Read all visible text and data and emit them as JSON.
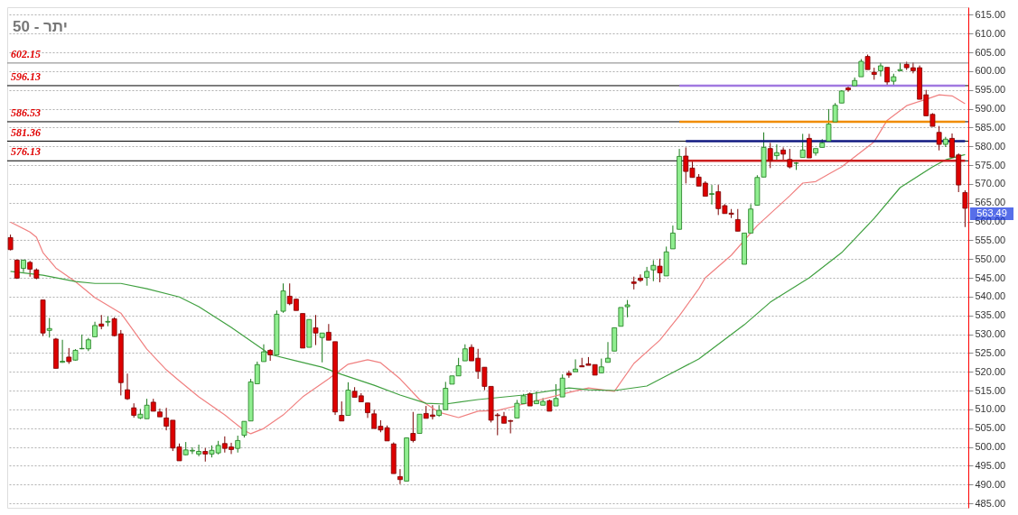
{
  "chart_data": {
    "type": "candlestick",
    "title": "50 - יתר",
    "categories": [
      null,
      null,
      null,
      null,
      null,
      null,
      null,
      null,
      null,
      null,
      null,
      null,
      null,
      null,
      null,
      null,
      null,
      null,
      null,
      null,
      null,
      null,
      null,
      null,
      null,
      null,
      null,
      null,
      null,
      null,
      null,
      null,
      null,
      null,
      null,
      null,
      null,
      null,
      null,
      null,
      null,
      null,
      null,
      null,
      null,
      null,
      null,
      null,
      null,
      null,
      null,
      null,
      null,
      null,
      null,
      null,
      null,
      null,
      null,
      null,
      null,
      null,
      null,
      null,
      null,
      null,
      null,
      null,
      null,
      null,
      null,
      null,
      null,
      null,
      null,
      null,
      null,
      null,
      null,
      null,
      null,
      null,
      null,
      null,
      null,
      null,
      null,
      null,
      null,
      null,
      null,
      null,
      null,
      null,
      null,
      null,
      null,
      null,
      null,
      null,
      null,
      null,
      null,
      null,
      null,
      null,
      null,
      null,
      null,
      null,
      null,
      null,
      null,
      null,
      null,
      null,
      null,
      null,
      null,
      null,
      null,
      null,
      null,
      null,
      null,
      null,
      null,
      null,
      null,
      null,
      null,
      null,
      null,
      null,
      null,
      null,
      null,
      null,
      null,
      null,
      null,
      null,
      null,
      null,
      null,
      null,
      null,
      null
    ],
    "ohlc": [
      [
        555.7,
        556.5,
        552.3,
        552.5
      ],
      [
        549.7,
        549.9,
        544.7,
        544.9
      ],
      [
        547.5,
        549.8,
        546.5,
        549.7
      ],
      [
        549.1,
        549.5,
        545.3,
        547.3
      ],
      [
        547.1,
        547.5,
        544.6,
        544.9
      ],
      [
        539.1,
        539.1,
        529.5,
        530.3
      ],
      [
        531.0,
        534.3,
        529.1,
        531.5
      ],
      [
        528.7,
        529.0,
        520.9,
        520.9
      ],
      [
        522.5,
        528.5,
        522.4,
        522.8
      ],
      [
        523.9,
        526.3,
        522.1,
        522.7
      ],
      [
        523.1,
        526.0,
        523.0,
        525.7
      ],
      [
        526.1,
        529.9,
        526.0,
        526.2
      ],
      [
        526.1,
        529.0,
        525.5,
        528.5
      ],
      [
        529.3,
        533.3,
        529.3,
        532.3
      ],
      [
        532.7,
        535.1,
        531.3,
        532.1
      ],
      [
        533.2,
        534.7,
        532.1,
        533.4
      ],
      [
        534.1,
        534.5,
        529.4,
        529.6
      ],
      [
        530.1,
        531.1,
        513.7,
        517.1
      ],
      [
        515.2,
        519.5,
        512.5,
        512.8
      ],
      [
        510.4,
        511.6,
        507.8,
        508.4
      ],
      [
        507.7,
        510.1,
        507.4,
        508.7
      ],
      [
        507.5,
        512.8,
        507.5,
        511.1
      ],
      [
        511.9,
        512.8,
        509.5,
        509.5
      ],
      [
        509.3,
        510.2,
        508.0,
        508.0
      ],
      [
        507.7,
        510.4,
        504.4,
        505.5
      ],
      [
        507.1,
        507.1,
        498.9,
        499.7
      ],
      [
        500.0,
        500.9,
        496.3,
        496.3
      ],
      [
        497.9,
        501.3,
        497.8,
        499.2
      ],
      [
        498.9,
        499.9,
        498.1,
        499.1
      ],
      [
        498.1,
        500.6,
        497.5,
        498.8
      ],
      [
        498.8,
        499.7,
        496.1,
        498.1
      ],
      [
        498.1,
        500.4,
        497.2,
        499.1
      ],
      [
        498.4,
        501.6,
        498.0,
        500.4
      ],
      [
        500.9,
        502.8,
        498.5,
        499.6
      ],
      [
        500.0,
        501.1,
        498.1,
        499.3
      ],
      [
        499.6,
        503.0,
        498.5,
        501.7
      ],
      [
        503.1,
        506.8,
        502.5,
        506.8
      ],
      [
        506.9,
        518.1,
        506.9,
        517.3
      ],
      [
        516.8,
        522.7,
        516.8,
        521.9
      ],
      [
        522.7,
        527.3,
        522.7,
        525.3
      ],
      [
        525.7,
        526.0,
        522.9,
        524.5
      ],
      [
        524.5,
        536.3,
        524.5,
        535.3
      ],
      [
        536.1,
        543.5,
        535.7,
        541.5
      ],
      [
        540.1,
        543.5,
        537.7,
        538.1
      ],
      [
        539.3,
        539.5,
        536.3,
        536.3
      ],
      [
        535.5,
        535.5,
        526.3,
        526.3
      ],
      [
        526.5,
        533.9,
        526.5,
        533.9
      ],
      [
        531.7,
        535.1,
        527.1,
        530.3
      ],
      [
        529.1,
        530.3,
        522.5,
        530.3
      ],
      [
        530.5,
        532.7,
        528.4,
        528.4
      ],
      [
        528.0,
        528.0,
        508.5,
        509.3
      ],
      [
        508.4,
        512.1,
        506.9,
        506.9
      ],
      [
        508.4,
        517.2,
        508.4,
        515.1
      ],
      [
        514.8,
        515.9,
        513.2,
        513.2
      ],
      [
        513.6,
        514.3,
        512.0,
        512.0
      ],
      [
        511.7,
        511.7,
        507.7,
        509.1
      ],
      [
        508.8,
        509.9,
        504.9,
        504.9
      ],
      [
        505.5,
        507.1,
        503.9,
        504.5
      ],
      [
        505.1,
        505.7,
        501.6,
        501.6
      ],
      [
        500.8,
        501.2,
        492.9,
        492.9
      ],
      [
        492.1,
        494.1,
        490.1,
        491.3
      ],
      [
        490.9,
        502.5,
        490.9,
        502.4
      ],
      [
        503.6,
        509.3,
        501.2,
        501.7
      ],
      [
        503.6,
        508.7,
        503.6,
        508.7
      ],
      [
        508.9,
        510.9,
        507.6,
        507.6
      ],
      [
        508.5,
        511.1,
        507.3,
        508.1
      ],
      [
        508.4,
        511.1,
        508.0,
        509.7
      ],
      [
        509.9,
        517.3,
        509.9,
        515.6
      ],
      [
        516.7,
        518.9,
        516.7,
        518.9
      ],
      [
        518.9,
        523.7,
        518.9,
        521.6
      ],
      [
        522.9,
        527.3,
        522.9,
        526.1
      ],
      [
        526.5,
        527.3,
        522.9,
        522.9
      ],
      [
        523.6,
        526.1,
        518.1,
        520.1
      ],
      [
        521.2,
        521.2,
        515.1,
        516.1
      ],
      [
        516.1,
        516.1,
        506.5,
        507.1
      ],
      [
        508.5,
        509.0,
        503.1,
        508.3
      ],
      [
        508.1,
        509.3,
        506.3,
        506.3
      ],
      [
        507.0,
        507.2,
        503.6,
        506.8
      ],
      [
        507.7,
        512.5,
        507.7,
        511.6
      ],
      [
        511.5,
        514.1,
        511.5,
        513.6
      ],
      [
        514.1,
        514.5,
        510.9,
        510.9
      ],
      [
        511.5,
        514.8,
        511.5,
        512.3
      ],
      [
        511.1,
        513.0,
        511.1,
        512.1
      ],
      [
        512.3,
        512.6,
        509.5,
        509.5
      ],
      [
        510.9,
        516.7,
        510.9,
        512.9
      ],
      [
        513.3,
        519.3,
        513.3,
        518.3
      ],
      [
        519.6,
        520.3,
        518.4,
        519.1
      ],
      [
        520.0,
        523.3,
        520.0,
        520.7
      ],
      [
        521.6,
        523.7,
        521.3,
        521.3
      ],
      [
        522.1,
        523.9,
        521.7,
        521.7
      ],
      [
        521.9,
        521.9,
        519.1,
        519.1
      ],
      [
        519.7,
        523.5,
        519.7,
        521.3
      ],
      [
        522.5,
        527.9,
        522.5,
        523.6
      ],
      [
        525.5,
        531.7,
        525.5,
        531.7
      ],
      [
        532.1,
        537.1,
        532.1,
        537.1
      ],
      [
        537.3,
        539.1,
        534.5,
        537.8
      ],
      [
        543.9,
        545.3,
        541.9,
        543.5
      ],
      [
        544.9,
        545.9,
        543.9,
        544.3
      ],
      [
        545.1,
        547.9,
        542.9,
        546.7
      ],
      [
        547.1,
        549.7,
        544.1,
        548.3
      ],
      [
        548.1,
        550.1,
        543.8,
        546.3
      ],
      [
        545.5,
        553.3,
        545.5,
        551.9
      ],
      [
        552.7,
        558.9,
        552.7,
        556.9
      ],
      [
        557.9,
        579.3,
        557.9,
        577.3
      ],
      [
        577.4,
        579.7,
        570.1,
        573.3
      ],
      [
        574.2,
        576.1,
        571.7,
        571.7
      ],
      [
        571.8,
        572.6,
        569.4,
        569.4
      ],
      [
        570.2,
        570.7,
        566.7,
        566.7
      ],
      [
        567.2,
        569.7,
        564.5,
        567.4
      ],
      [
        567.9,
        569.7,
        561.7,
        563.4
      ],
      [
        564.2,
        564.6,
        562.1,
        562.1
      ],
      [
        562.2,
        563.3,
        560.9,
        561.9
      ],
      [
        560.5,
        563.3,
        557.4,
        557.4
      ],
      [
        548.6,
        556.9,
        548.6,
        556.9
      ],
      [
        556.9,
        564.6,
        556.9,
        563.3
      ],
      [
        564.3,
        572.3,
        564.3,
        571.7
      ],
      [
        571.8,
        583.7,
        571.8,
        579.7
      ],
      [
        579.4,
        580.9,
        574.2,
        576.2
      ],
      [
        577.5,
        580.5,
        576.1,
        578.3
      ],
      [
        579.0,
        579.7,
        576.1,
        577.9
      ],
      [
        576.5,
        579.3,
        574.1,
        574.5
      ],
      [
        575.5,
        575.8,
        573.7,
        575.5
      ],
      [
        577.0,
        583.3,
        577.0,
        579.0
      ],
      [
        582.1,
        583.3,
        576.9,
        576.9
      ],
      [
        578.2,
        579.4,
        577.5,
        579.4
      ],
      [
        579.7,
        581.9,
        579.7,
        580.9
      ],
      [
        581.4,
        589.9,
        581.4,
        585.9
      ],
      [
        586.5,
        591.5,
        586.5,
        590.9
      ],
      [
        591.5,
        594.9,
        591.5,
        594.7
      ],
      [
        595.5,
        596.1,
        594.5,
        595.0
      ],
      [
        596.1,
        598.3,
        596.1,
        597.5
      ],
      [
        598.5,
        603.2,
        598.5,
        602.6
      ],
      [
        603.9,
        604.4,
        600.4,
        600.4
      ],
      [
        599.7,
        600.9,
        597.7,
        599.1
      ],
      [
        600.1,
        602.2,
        598.6,
        601.4
      ],
      [
        601.0,
        601.0,
        596.1,
        597.1
      ],
      [
        597.3,
        599.3,
        596.1,
        598.5
      ],
      [
        600.1,
        602.2,
        600.0,
        600.4
      ],
      [
        601.8,
        602.5,
        600.3,
        600.9
      ],
      [
        600.9,
        602.3,
        599.4,
        600.1
      ],
      [
        600.9,
        601.5,
        592.5,
        592.5
      ],
      [
        593.7,
        595.0,
        588.1,
        588.1
      ],
      [
        588.5,
        588.8,
        585.3,
        585.3
      ],
      [
        583.7,
        585.4,
        578.9,
        580.5
      ],
      [
        580.5,
        582.5,
        579.8,
        581.9
      ],
      [
        582.1,
        583.4,
        576.9,
        577.1
      ],
      [
        577.7,
        578.1,
        567.8,
        569.7
      ],
      [
        567.7,
        568.3,
        558.5,
        563.49
      ]
    ],
    "series": [
      {
        "type": "line",
        "color": "#f08080",
        "values": [
          559.8,
          null,
          null,
          557.2,
          555.8,
          551.7,
          null,
          547.6,
          null,
          null,
          544.0,
          null,
          null,
          539.7,
          null,
          null,
          null,
          535.6,
          533.2,
          null,
          null,
          526.0,
          null,
          null,
          520.5,
          null,
          517.6,
          null,
          null,
          513.3,
          null,
          null,
          null,
          508.5,
          null,
          null,
          504.4,
          503.5,
          null,
          504.9,
          null,
          null,
          508.5,
          null,
          null,
          513.3,
          null,
          null,
          null,
          518.1,
          null,
          null,
          522.0,
          null,
          null,
          523.2,
          null,
          522.4,
          null,
          null,
          518.1,
          null,
          null,
          512.6,
          null,
          null,
          509.2,
          null,
          null,
          507.8,
          null,
          null,
          509.5,
          null,
          null,
          509.7,
          null,
          null,
          null,
          511.4,
          null,
          null,
          null,
          null,
          null,
          null,
          514.5,
          null,
          null,
          515.7,
          null,
          null,
          null,
          514.8,
          null,
          null,
          522.2,
          null,
          null,
          null,
          528.4,
          null,
          null,
          534.9,
          null,
          null,
          542.1,
          545.0,
          null,
          null,
          null,
          551.0,
          null,
          null,
          null,
          558.9,
          null,
          null,
          null,
          null,
          566.8,
          null,
          570.2,
          null,
          570.6,
          null,
          572.6,
          null,
          574.5,
          null,
          null,
          null,
          null,
          581.2,
          null,
          586.9,
          null,
          null,
          590.8,
          null,
          null,
          592.5,
          null,
          593.7,
          null,
          593.4,
          null,
          591.3
        ]
      },
      {
        "type": "line",
        "color": "#40a040",
        "values": [
          546.7,
          null,
          null,
          null,
          null,
          545.7,
          null,
          null,
          null,
          null,
          544.0,
          null,
          null,
          543.5,
          null,
          null,
          null,
          543.5,
          null,
          null,
          null,
          542.1,
          null,
          null,
          null,
          null,
          539.9,
          null,
          null,
          537.3,
          null,
          null,
          null,
          null,
          531.8,
          null,
          null,
          null,
          527.0,
          null,
          524.6,
          null,
          null,
          null,
          522.9,
          null,
          null,
          null,
          521.2,
          null,
          null,
          519.3,
          null,
          null,
          null,
          null,
          516.4,
          null,
          null,
          null,
          513.8,
          null,
          null,
          null,
          511.6,
          null,
          null,
          511.4,
          null,
          null,
          null,
          null,
          512.6,
          null,
          null,
          null,
          null,
          null,
          null,
          513.8,
          null,
          null,
          null,
          null,
          null,
          null,
          515.7,
          null,
          null,
          515.2,
          null,
          null,
          null,
          515.0,
          null,
          null,
          null,
          null,
          516.2,
          null,
          null,
          null,
          519.8,
          null,
          null,
          null,
          523.4,
          null,
          null,
          null,
          null,
          null,
          null,
          532.5,
          null,
          null,
          null,
          538.5,
          null,
          null,
          null,
          null,
          null,
          545.0,
          null,
          null,
          null,
          null,
          551.7,
          null,
          null,
          null,
          null,
          560.8,
          null,
          null,
          null,
          569.0,
          null,
          null,
          null,
          null,
          574.5,
          null,
          576.4,
          null,
          null,
          577.8
        ]
      },
      {
        "type": "line",
        "color": "#a078e0",
        "values": [
          null,
          null,
          null,
          null,
          null,
          null,
          null,
          null,
          null,
          null,
          null,
          null,
          null,
          null,
          null,
          null,
          null,
          null,
          null,
          null,
          null,
          null,
          null,
          null,
          null,
          null,
          null,
          null,
          null,
          null,
          null,
          null,
          null,
          null,
          null,
          null,
          null,
          null,
          null,
          null,
          null,
          null,
          null,
          null,
          null,
          null,
          null,
          null,
          null,
          null,
          null,
          null,
          null,
          null,
          null,
          null,
          null,
          null,
          null,
          null,
          null,
          null,
          null,
          null,
          null,
          null,
          null,
          null,
          null,
          null,
          null,
          null,
          null,
          null,
          null,
          null,
          null,
          null,
          null,
          null,
          null,
          null,
          null,
          null,
          null,
          null,
          null,
          null,
          null,
          null,
          null,
          null,
          null,
          null,
          null,
          null,
          null,
          null,
          null,
          null,
          null,
          null,
          null,
          596.13,
          596.13,
          596.13,
          596.13,
          596.13,
          596.13,
          596.13,
          596.13,
          596.13,
          596.13,
          596.13,
          596.13,
          596.13,
          596.13,
          596.13,
          596.13,
          596.13,
          596.13,
          596.13,
          596.13,
          596.13,
          596.13,
          596.13,
          596.13,
          596.13,
          596.13,
          596.13,
          596.13,
          596.13,
          596.13,
          596.13,
          596.13,
          596.13,
          596.13,
          596.13,
          596.13,
          596.13,
          596.13,
          596.13,
          596.13,
          596.13,
          596.13,
          596.13,
          596.13,
          596.13
        ]
      },
      {
        "type": "line",
        "color": "#f08c00",
        "values": [
          null,
          null,
          null,
          null,
          null,
          null,
          null,
          null,
          null,
          null,
          null,
          null,
          null,
          null,
          null,
          null,
          null,
          null,
          null,
          null,
          null,
          null,
          null,
          null,
          null,
          null,
          null,
          null,
          null,
          null,
          null,
          null,
          null,
          null,
          null,
          null,
          null,
          null,
          null,
          null,
          null,
          null,
          null,
          null,
          null,
          null,
          null,
          null,
          null,
          null,
          null,
          null,
          null,
          null,
          null,
          null,
          null,
          null,
          null,
          null,
          null,
          null,
          null,
          null,
          null,
          null,
          null,
          null,
          null,
          null,
          null,
          null,
          null,
          null,
          null,
          null,
          null,
          null,
          null,
          null,
          null,
          null,
          null,
          null,
          null,
          null,
          null,
          null,
          null,
          null,
          null,
          null,
          null,
          null,
          null,
          null,
          null,
          null,
          null,
          null,
          null,
          null,
          null,
          586.53,
          586.53,
          586.53,
          586.53,
          586.53,
          586.53,
          586.53,
          586.53,
          586.53,
          586.53,
          586.53,
          586.53,
          586.53,
          586.53,
          586.53,
          586.53,
          586.53,
          586.53,
          586.53,
          586.53,
          586.53,
          586.53,
          586.53,
          586.53,
          586.53,
          586.53,
          586.53,
          586.53,
          586.53,
          586.53,
          586.53,
          586.53,
          586.53,
          586.53,
          586.53,
          586.53,
          586.53,
          586.53,
          586.53,
          586.53,
          586.53,
          586.53,
          586.53,
          586.53,
          586.53
        ]
      },
      {
        "type": "line",
        "color": "#101880",
        "values": [
          null,
          null,
          null,
          null,
          null,
          null,
          null,
          null,
          null,
          null,
          null,
          null,
          null,
          null,
          null,
          null,
          null,
          null,
          null,
          null,
          null,
          null,
          null,
          null,
          null,
          null,
          null,
          null,
          null,
          null,
          null,
          null,
          null,
          null,
          null,
          null,
          null,
          null,
          null,
          null,
          null,
          null,
          null,
          null,
          null,
          null,
          null,
          null,
          null,
          null,
          null,
          null,
          null,
          null,
          null,
          null,
          null,
          null,
          null,
          null,
          null,
          null,
          null,
          null,
          null,
          null,
          null,
          null,
          null,
          null,
          null,
          null,
          null,
          null,
          null,
          null,
          null,
          null,
          null,
          null,
          null,
          null,
          null,
          null,
          null,
          null,
          null,
          null,
          null,
          null,
          null,
          null,
          null,
          null,
          null,
          null,
          null,
          null,
          null,
          null,
          null,
          null,
          null,
          null,
          581.36,
          581.36,
          581.36,
          581.36,
          581.36,
          581.36,
          581.36,
          581.36,
          581.36,
          581.36,
          581.36,
          581.36,
          581.36,
          581.36,
          581.36,
          581.36,
          581.36,
          581.36,
          581.36,
          581.36,
          581.36,
          581.36,
          581.36,
          581.36,
          581.36,
          581.36,
          581.36,
          581.36,
          581.36,
          581.36,
          581.36,
          581.36,
          581.36,
          581.36,
          581.36,
          581.36,
          581.36,
          581.36,
          581.36,
          581.36,
          581.36,
          581.36,
          581.36,
          581.36
        ]
      },
      {
        "type": "line",
        "color": "#cc2020",
        "values": [
          null,
          null,
          null,
          null,
          null,
          null,
          null,
          null,
          null,
          null,
          null,
          null,
          null,
          null,
          null,
          null,
          null,
          null,
          null,
          null,
          null,
          null,
          null,
          null,
          null,
          null,
          null,
          null,
          null,
          null,
          null,
          null,
          null,
          null,
          null,
          null,
          null,
          null,
          null,
          null,
          null,
          null,
          null,
          null,
          null,
          null,
          null,
          null,
          null,
          null,
          null,
          null,
          null,
          null,
          null,
          null,
          null,
          null,
          null,
          null,
          null,
          null,
          null,
          null,
          null,
          null,
          null,
          null,
          null,
          null,
          null,
          null,
          null,
          null,
          null,
          null,
          null,
          null,
          null,
          null,
          null,
          null,
          null,
          null,
          null,
          null,
          null,
          null,
          null,
          null,
          null,
          null,
          null,
          null,
          null,
          null,
          null,
          null,
          null,
          null,
          null,
          null,
          null,
          null,
          576.13,
          576.13,
          576.13,
          576.13,
          576.13,
          576.13,
          576.13,
          576.13,
          576.13,
          576.13,
          576.13,
          576.13,
          576.13,
          576.13,
          576.13,
          576.13,
          576.13,
          576.13,
          576.13,
          576.13,
          576.13,
          576.13,
          576.13,
          576.13,
          576.13,
          576.13,
          576.13,
          576.13,
          576.13,
          576.13,
          576.13,
          576.13,
          576.13,
          576.13,
          576.13,
          576.13,
          576.13,
          576.13,
          576.13,
          576.13,
          576.13,
          576.13,
          576.13,
          576.13
        ]
      }
    ],
    "ref_lines": [
      {
        "axis": "y",
        "value": 602.15,
        "label": "602.15",
        "color": "#808080"
      },
      {
        "axis": "y",
        "value": 596.13,
        "label": "596.13",
        "color": "#000000"
      },
      {
        "axis": "y",
        "value": 586.53,
        "label": "586.53",
        "color": "#000000"
      },
      {
        "axis": "y",
        "value": 581.36,
        "label": "581.36",
        "color": "#000000"
      },
      {
        "axis": "y",
        "value": 576.13,
        "label": "576.13",
        "color": "#000000"
      }
    ],
    "annotations": [
      "563.49"
    ],
    "ylim": [
      483.8,
      617
    ],
    "yticks": [
      {
        "value": 485,
        "label": "485.00"
      },
      {
        "value": 490,
        "label": "490.00"
      },
      {
        "value": 495,
        "label": "495.00"
      },
      {
        "value": 500,
        "label": "500.00"
      },
      {
        "value": 505,
        "label": "505.00"
      },
      {
        "value": 510,
        "label": "510.00"
      },
      {
        "value": 515,
        "label": "515.00"
      },
      {
        "value": 520,
        "label": "520.00"
      },
      {
        "value": 525,
        "label": "525.00"
      },
      {
        "value": 530,
        "label": "530.00"
      },
      {
        "value": 535,
        "label": "535.00"
      },
      {
        "value": 540,
        "label": "540.00"
      },
      {
        "value": 545,
        "label": "545.00"
      },
      {
        "value": 550,
        "label": "550.00"
      },
      {
        "value": 555,
        "label": "555.00"
      },
      {
        "value": 560,
        "label": "560.00"
      },
      {
        "value": 565,
        "label": "565.00"
      },
      {
        "value": 570,
        "label": "570.00"
      },
      {
        "value": 575,
        "label": "575.00"
      },
      {
        "value": 580,
        "label": "580.00"
      },
      {
        "value": 585,
        "label": "585.00"
      },
      {
        "value": 590,
        "label": "590.00"
      },
      {
        "value": 595,
        "label": "595.00"
      },
      {
        "value": 600,
        "label": "600.00"
      },
      {
        "value": 605,
        "label": "605.00"
      },
      {
        "value": 610,
        "label": "610.00"
      },
      {
        "value": 615,
        "label": "615.00"
      }
    ],
    "grid": "y"
  }
}
